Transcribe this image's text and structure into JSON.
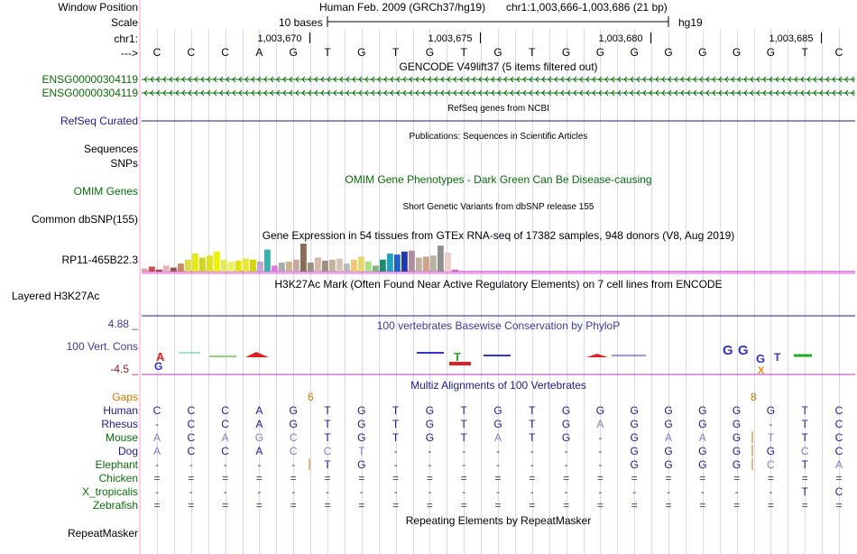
{
  "labels": {
    "window_position": "Window Position",
    "scale": "Scale",
    "chrom": "chr1:",
    "arrow": "--->",
    "gencode_1": "ENSG00000304119",
    "gencode_2": "ENSG00000304119",
    "refseq": "RefSeq Curated",
    "sequences": "Sequences",
    "snps": "SNPs",
    "omim": "OMIM Genes",
    "dbsnp": "Common dbSNP(155)",
    "gtex": "RP11-465B22.3",
    "h3k27ac": "Layered H3K27Ac",
    "cons_max": "4.88 _",
    "cons": "100 Vert. Cons",
    "cons_min": "-4.5 _",
    "gaps": "Gaps",
    "repeatmasker": "RepeatMasker"
  },
  "header": {
    "assembly": "Human Feb. 2009 (GRCh37/hg19)",
    "position": "chr1:1,003,666-1,003,686 (21 bp)",
    "scale_text": "10 bases",
    "scale_db": "hg19"
  },
  "ruler_ticks": [
    "1,003,670",
    "1,003,675",
    "1,003,680",
    "1,003,685"
  ],
  "bases": [
    "C",
    "C",
    "C",
    "A",
    "G",
    "T",
    "G",
    "T",
    "G",
    "T",
    "G",
    "T",
    "G",
    "G",
    "G",
    "G",
    "G",
    "G",
    "G",
    "T",
    "C"
  ],
  "tracks": {
    "gencode": "GENCODE V49lift37 (5 items filtered out)",
    "refseq": "RefSeq genes from NCBI",
    "publications": "Publications: Sequences in Scientific Articles",
    "omim": "OMIM Gene Phenotypes - Dark Green Can Be Disease-causing",
    "dbsnp": "Short Genetic Variants from dbSNP release 155",
    "gtex": "Gene Expression in 54 tissues from GTEx RNA-seq of 17382 samples, 948 donors (V8, Aug 2019)",
    "h3k27ac": "H3K27Ac Mark (Often Found Near Active Regulatory Elements) on 7 cell lines from ENCODE",
    "phylop": "100 vertebrates Basewise Conservation by PhyloP",
    "multiz": "Multiz Alignments of 100 Vertebrates",
    "repeatmasker": "Repeating Elements by RepeatMasker"
  },
  "gtex_values": [
    3,
    5,
    2,
    6,
    4,
    8,
    12,
    18,
    14,
    16,
    20,
    12,
    10,
    11,
    13,
    12,
    10,
    22,
    6,
    9,
    10,
    12,
    28,
    9,
    14,
    11,
    12,
    13,
    8,
    12,
    15,
    10,
    6,
    12,
    18,
    17,
    20,
    21,
    14,
    15,
    16,
    26,
    19,
    2
  ],
  "gtex_colors": [
    "#e4a0a0",
    "#d24d4d",
    "#cc3333",
    "#e9b0b0",
    "#a05050",
    "#cc8866",
    "#dddd44",
    "#e8e812",
    "#d2d223",
    "#e0e01e",
    "#f0f000",
    "#e7e75d",
    "#f0f060",
    "#e4e40f",
    "#e8e832",
    "#d4d400",
    "#c9a3d2",
    "#3bb0b0",
    "#e678e6",
    "#aaa",
    "#ccb38a",
    "#c8a8a0",
    "#8b6b55",
    "#a38f7d",
    "#d5b8a5",
    "#a08e81",
    "#c4b29c",
    "#d6c4b0",
    "#bbbbbb",
    "#f0c674",
    "#e9d66b",
    "#a6df84",
    "#83b283",
    "#1e8a6e",
    "#1da3c8",
    "#2060c8",
    "#2038b0",
    "#b08ca0",
    "#c4b0a0",
    "#d0a088",
    "#b8b0a0",
    "#8f8f8f",
    "#eecccc",
    "#cc66cc"
  ],
  "gtex_colors_note": "",
  "gaps_marks": {
    "left": "6",
    "right": "8"
  },
  "species": [
    {
      "name": "Human",
      "seq": [
        "C",
        "C",
        "C",
        "A",
        "G",
        "T",
        "G",
        "T",
        "G",
        "T",
        "G",
        "T",
        "G",
        "G",
        "G",
        "G",
        "G",
        "G",
        "G",
        "T",
        "C"
      ]
    },
    {
      "name": "Rhesus",
      "seq": [
        "-",
        "C",
        "C",
        "A",
        "G",
        "T",
        "G",
        "T",
        "G",
        "T",
        "G",
        "T",
        "G",
        "A",
        "G",
        "G",
        "G",
        "G",
        "-",
        "T",
        "C"
      ]
    },
    {
      "name": "Mouse",
      "seq": [
        "A",
        "C",
        "A",
        "G",
        "C",
        "T",
        "G",
        "T",
        "G",
        "T",
        "A",
        "T",
        "G",
        "-",
        "G",
        "A",
        "A",
        "G",
        "T",
        "T",
        "C"
      ]
    },
    {
      "name": "Dog",
      "seq": [
        "A",
        "C",
        "C",
        "A",
        "C",
        "C",
        "T",
        "-",
        "-",
        "-",
        "-",
        "-",
        "-",
        "-",
        "G",
        "G",
        "G",
        "G",
        "G",
        "C",
        "C"
      ]
    },
    {
      "name": "Elephant",
      "seq": [
        "-",
        "-",
        "-",
        "-",
        "-",
        "T",
        "G",
        "-",
        "-",
        "-",
        "-",
        "-",
        "-",
        "-",
        "G",
        "G",
        "G",
        "G",
        "C",
        "T",
        "A"
      ]
    },
    {
      "name": "Chicken",
      "seq": [
        "=",
        "=",
        "=",
        "=",
        "=",
        "=",
        "=",
        "=",
        "=",
        "=",
        "=",
        "=",
        "=",
        "=",
        "=",
        "=",
        "=",
        "=",
        "=",
        "=",
        "="
      ]
    },
    {
      "name": "X_tropicalis",
      "seq": [
        "-",
        "-",
        "-",
        "-",
        "-",
        "-",
        "-",
        "-",
        "-",
        "-",
        "-",
        "-",
        "-",
        "-",
        "-",
        "-",
        "-",
        "-",
        "-",
        "T",
        "C"
      ]
    },
    {
      "name": "Zebrafish",
      "seq": [
        "=",
        "=",
        "=",
        "=",
        "=",
        "=",
        "=",
        "=",
        "=",
        "=",
        "=",
        "=",
        "=",
        "=",
        "=",
        "=",
        "=",
        "=",
        "=",
        "=",
        "="
      ]
    }
  ]
}
